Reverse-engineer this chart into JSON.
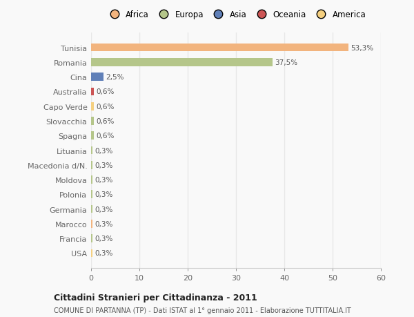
{
  "categories": [
    "Tunisia",
    "Romania",
    "Cina",
    "Australia",
    "Capo Verde",
    "Slovacchia",
    "Spagna",
    "Lituania",
    "Macedonia d/N.",
    "Moldova",
    "Polonia",
    "Germania",
    "Marocco",
    "Francia",
    "USA"
  ],
  "values": [
    53.3,
    37.5,
    2.5,
    0.6,
    0.6,
    0.6,
    0.6,
    0.3,
    0.3,
    0.3,
    0.3,
    0.3,
    0.3,
    0.3,
    0.3
  ],
  "labels": [
    "53,3%",
    "37,5%",
    "2,5%",
    "0,6%",
    "0,6%",
    "0,6%",
    "0,6%",
    "0,3%",
    "0,3%",
    "0,3%",
    "0,3%",
    "0,3%",
    "0,3%",
    "0,3%",
    "0,3%"
  ],
  "colors": [
    "#f2b47e",
    "#b5c68a",
    "#6080b8",
    "#cc5555",
    "#f5d080",
    "#b5c68a",
    "#b5c68a",
    "#b5c68a",
    "#b5c68a",
    "#b5c68a",
    "#b5c68a",
    "#b5c68a",
    "#f2b47e",
    "#b5c68a",
    "#f5d080"
  ],
  "legend_labels": [
    "Africa",
    "Europa",
    "Asia",
    "Oceania",
    "America"
  ],
  "legend_colors": [
    "#f2b47e",
    "#b5c68a",
    "#6080b8",
    "#cc5555",
    "#f5d080"
  ],
  "title": "Cittadini Stranieri per Cittadinanza - 2011",
  "subtitle": "COMUNE DI PARTANNA (TP) - Dati ISTAT al 1° gennaio 2011 - Elaborazione TUTTITALIA.IT",
  "xlim": [
    0,
    60
  ],
  "xticks": [
    0,
    10,
    20,
    30,
    40,
    50,
    60
  ],
  "background_color": "#f9f9f9",
  "grid_color": "#e8e8e8",
  "bar_height": 0.55
}
